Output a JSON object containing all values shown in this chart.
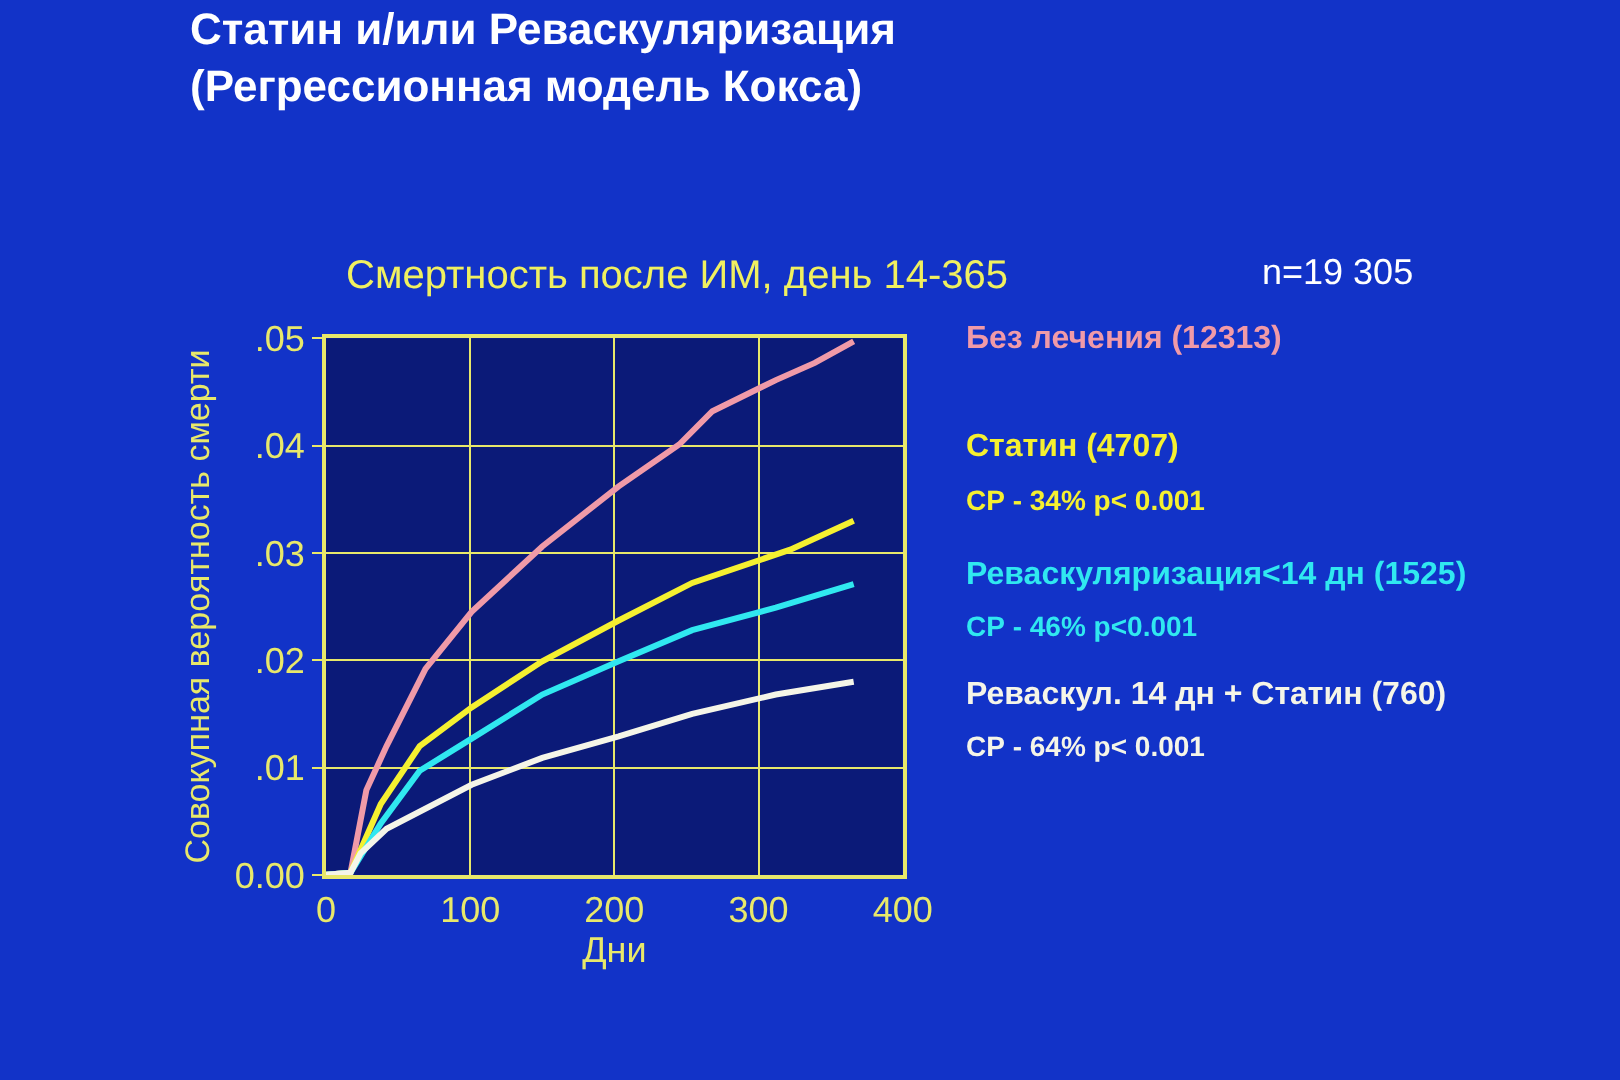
{
  "chart_data": {
    "type": "line",
    "title": "Статин и/или Реваскуляризация\n(Регрессионная модель Кокса)",
    "subtitle": "Смертность после ИМ, день 14-365",
    "xlabel": "Дни",
    "ylabel": "Совокупная вероятность смерти",
    "xlim": [
      0,
      400
    ],
    "xticks": [
      0,
      100,
      200,
      300,
      400
    ],
    "ylim": [
      0,
      0.05
    ],
    "yticks": [
      {
        "value": 0,
        "label": "0.00"
      },
      {
        "value": 0.01,
        "label": ".01"
      },
      {
        "value": 0.02,
        "label": ".02"
      },
      {
        "value": 0.03,
        "label": ".03"
      },
      {
        "value": 0.04,
        "label": ".04"
      },
      {
        "value": 0.05,
        "label": ".05"
      }
    ],
    "grid": true,
    "marker": "none",
    "line_style": "solid",
    "series": [
      {
        "name": "Без лечения (12313)",
        "color": "#f09aa8",
        "x": [
          0,
          17,
          28,
          42,
          69,
          101,
          150,
          203,
          245,
          268,
          312,
          339,
          366
        ],
        "values": [
          0,
          0.0002,
          0.0079,
          0.012,
          0.0192,
          0.0245,
          0.0306,
          0.0362,
          0.0401,
          0.0432,
          0.0461,
          0.0477,
          0.0497
        ]
      },
      {
        "name": "Статин (4707)",
        "color": "#f5f030",
        "x": [
          0,
          17,
          38,
          65,
          101,
          150,
          203,
          254,
          322,
          366
        ],
        "values": [
          0,
          0.0002,
          0.0066,
          0.012,
          0.0156,
          0.0199,
          0.0237,
          0.0272,
          0.0303,
          0.033
        ]
      },
      {
        "name": "Реваскуляризация<14 дн (1525)",
        "color": "#30e8f0",
        "x": [
          0,
          17,
          38,
          65,
          101,
          150,
          203,
          254,
          312,
          366
        ],
        "values": [
          0,
          0.0002,
          0.0048,
          0.0097,
          0.0127,
          0.0168,
          0.0199,
          0.0228,
          0.0249,
          0.0271
        ]
      },
      {
        "name": "Реваскул. 14 дн + Статин (760)",
        "color": "#f5f5e8",
        "x": [
          0,
          17,
          24,
          42,
          101,
          150,
          203,
          254,
          312,
          366
        ],
        "values": [
          0,
          0.0002,
          0.002,
          0.0043,
          0.0084,
          0.0109,
          0.0129,
          0.015,
          0.0168,
          0.018
        ]
      }
    ],
    "annotations": [
      "n=19 305",
      "СР - 34% p< 0.001",
      "СР - 46% p<0.001",
      "СР - 64% p< 0.001"
    ]
  }
}
